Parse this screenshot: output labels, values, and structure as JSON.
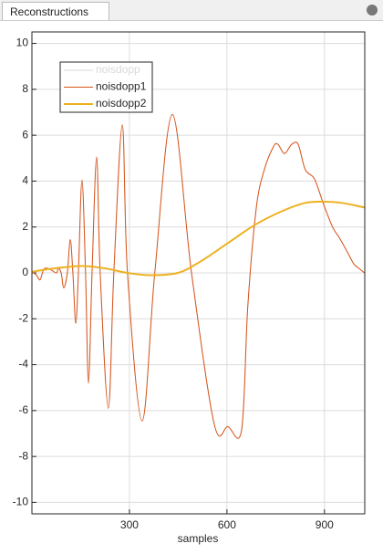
{
  "tab": {
    "title": "Reconstructions"
  },
  "chart_data": {
    "type": "line",
    "xlabel": "samples",
    "x": [
      0,
      14,
      25,
      36,
      48,
      62,
      76,
      81,
      90,
      98,
      109,
      118,
      126,
      135,
      143,
      154,
      165,
      174,
      185,
      199,
      210,
      235,
      252,
      278,
      294,
      339,
      378,
      432,
      491,
      561,
      603,
      645,
      664,
      690,
      715,
      743,
      757,
      777,
      799,
      819,
      841,
      869,
      897,
      925,
      945,
      967,
      990,
      1006,
      1023
    ],
    "series": [
      {
        "name": "noisdopp",
        "color": "#d9d9d9",
        "values": [
          0.05,
          -0.1,
          -0.3,
          0.15,
          0.2,
          0.1,
          0,
          0.2,
          0,
          -0.65,
          0,
          1.45,
          0,
          -2.2,
          0,
          4.05,
          0,
          -4.8,
          0,
          5.05,
          0,
          -5.9,
          0,
          6.45,
          0,
          -6.45,
          0,
          6.9,
          0,
          -6.6,
          -6.7,
          -6.85,
          -1.5,
          2.8,
          4.5,
          5.5,
          5.6,
          5.2,
          5.6,
          5.6,
          4.5,
          4.1,
          3,
          2,
          1.55,
          1,
          0.4,
          0.2,
          0
        ]
      },
      {
        "name": "noisdopp1",
        "color": "#d95319",
        "values": [
          0.05,
          -0.1,
          -0.3,
          0.15,
          0.2,
          0.1,
          0,
          0.2,
          0,
          -0.65,
          0,
          1.45,
          0,
          -2.2,
          0,
          4.05,
          0,
          -4.8,
          0,
          5.05,
          0,
          -5.9,
          0,
          6.45,
          0,
          -6.45,
          0,
          6.9,
          0,
          -6.6,
          -6.7,
          -6.85,
          -1.5,
          2.8,
          4.5,
          5.5,
          5.6,
          5.2,
          5.6,
          5.6,
          4.5,
          4.1,
          3,
          2,
          1.55,
          1,
          0.4,
          0.2,
          0
        ]
      },
      {
        "name": "noisdopp2",
        "color": "#edb120",
        "x": [
          0,
          70,
          154,
          224,
          294,
          364,
          449,
          519,
          603,
          687,
          771,
          841,
          897,
          953,
          1023
        ],
        "values": [
          0.05,
          0.2,
          0.3,
          0.2,
          0,
          -0.1,
          0,
          0.5,
          1.3,
          2.1,
          2.7,
          3.05,
          3.1,
          3.05,
          2.85
        ]
      }
    ],
    "xlim": [
      0,
      1024
    ],
    "xticks": [
      300,
      600,
      900
    ],
    "ylim": [
      -10.5,
      10.5
    ],
    "yticks": [
      -10,
      -8,
      -6,
      -4,
      -2,
      0,
      2,
      4,
      6,
      8,
      10
    ],
    "grid": true,
    "legend": "upper left"
  }
}
